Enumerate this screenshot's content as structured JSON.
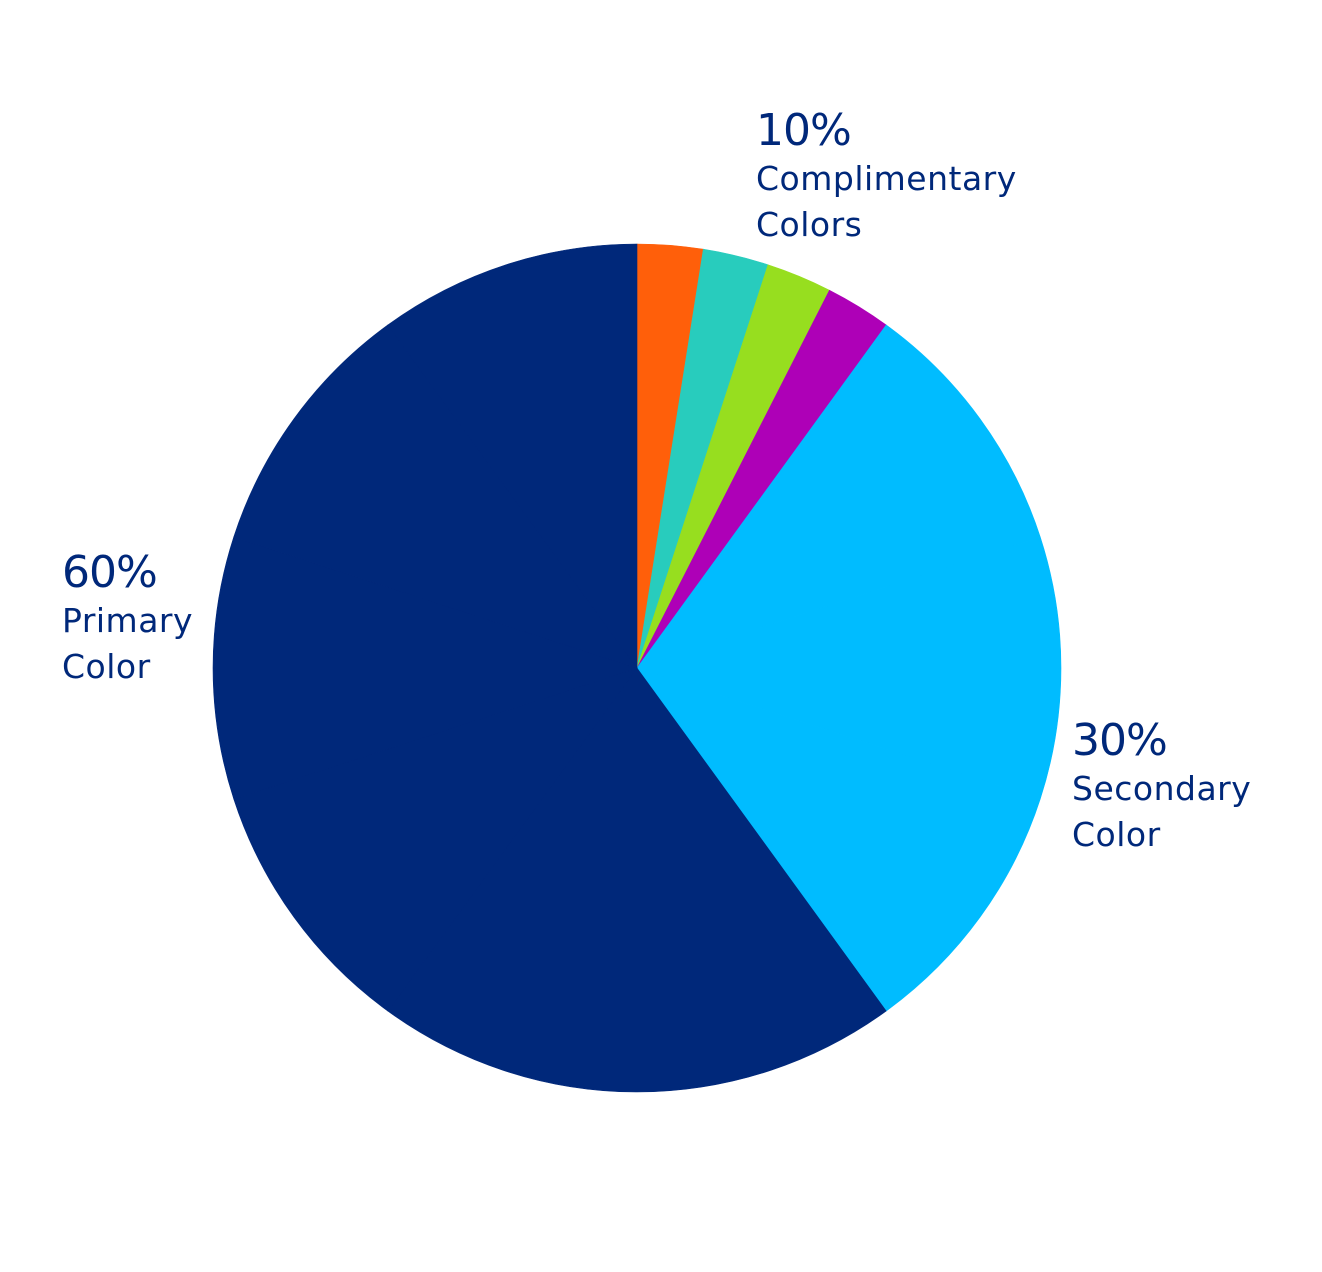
{
  "chart_data": {
    "type": "pie",
    "start_angle": "12 o'clock, clockwise",
    "slices": [
      {
        "group": "Complimentary Colors",
        "value": 2.5,
        "color": "#FF5F0A"
      },
      {
        "group": "Complimentary Colors",
        "value": 2.5,
        "color": "#28CCBD"
      },
      {
        "group": "Complimentary Colors",
        "value": 2.5,
        "color": "#97DE1F"
      },
      {
        "group": "Complimentary Colors",
        "value": 2.5,
        "color": "#AE00B7"
      },
      {
        "group": "Secondary Color",
        "value": 10,
        "color": "#00BCFF"
      },
      {
        "group": "Secondary Color",
        "value": 10,
        "color": "#00BCFF"
      },
      {
        "group": "Secondary Color",
        "value": 10,
        "color": "#00BCFF"
      },
      {
        "group": "Primary Color",
        "value": 20,
        "color": "#00287A"
      },
      {
        "group": "Primary Color",
        "value": 10,
        "color": "#00287A"
      },
      {
        "group": "Primary Color",
        "value": 10,
        "color": "#00287A"
      },
      {
        "group": "Primary Color",
        "value": 10,
        "color": "#00287A"
      },
      {
        "group": "Primary Color",
        "value": 10,
        "color": "#00287A"
      }
    ],
    "annotations": {
      "complimentary": {
        "percent": "10%",
        "line1": "Complimentary",
        "line2": "Colors"
      },
      "primary": {
        "percent": "60%",
        "line1": "Primary",
        "line2": "Color"
      },
      "secondary": {
        "percent": "30%",
        "line1": "Secondary",
        "line2": "Color"
      }
    },
    "text_color": "#00287A"
  }
}
